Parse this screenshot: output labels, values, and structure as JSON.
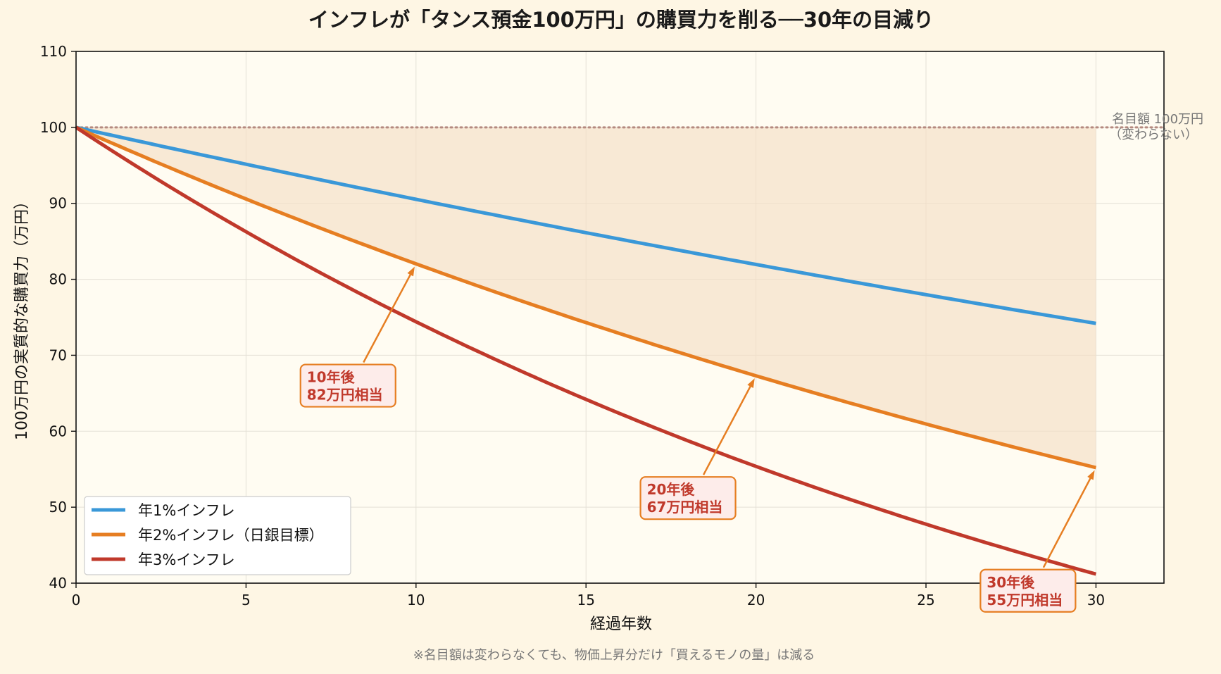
{
  "chart_data": {
    "type": "line",
    "title": "インフレが「タンス預金100万円」の購買力を削る──30年の目減り",
    "xlabel": "経過年数",
    "ylabel": "100万円の実質的な購買力（万円）",
    "xlim": [
      0,
      32
    ],
    "ylim": [
      40,
      110
    ],
    "x_ticks": [
      "0",
      "5",
      "10",
      "15",
      "20",
      "25",
      "30"
    ],
    "y_ticks": [
      "40",
      "50",
      "60",
      "70",
      "80",
      "90",
      "100",
      "110"
    ],
    "grid": true,
    "legend_position": "lower-left",
    "series": [
      {
        "name": "年1%インフレ",
        "color": "#3a98d8",
        "rate": 0.01,
        "x_range": [
          0,
          30
        ],
        "endpoints": [
          [
            0,
            100
          ],
          [
            10,
            90.5
          ],
          [
            20,
            82.0
          ],
          [
            30,
            74.2
          ]
        ]
      },
      {
        "name": "年2%インフレ（日銀目標）",
        "color": "#e67e22",
        "rate": 0.02,
        "x_range": [
          0,
          30
        ],
        "endpoints": [
          [
            0,
            100
          ],
          [
            10,
            82.0
          ],
          [
            20,
            67.3
          ],
          [
            30,
            55.2
          ]
        ]
      },
      {
        "name": "年3%インフレ",
        "color": "#c0392b",
        "rate": 0.03,
        "x_range": [
          0,
          30
        ],
        "endpoints": [
          [
            0,
            100
          ],
          [
            10,
            74.4
          ],
          [
            20,
            55.4
          ],
          [
            30,
            41.2
          ]
        ]
      }
    ],
    "nominal_line": {
      "value": 100,
      "label_line1": "名目額 100万円",
      "label_line2": "（変わらない）",
      "color": "#b58a80"
    },
    "shaded_area": {
      "between": [
        "nominal 100",
        "年2%インフレ（日銀目標）"
      ],
      "color": "#f5dfc5"
    },
    "annotations": [
      {
        "line1": "10年後",
        "line2": "82万円相当",
        "target_x": 10,
        "target_y": 82.0,
        "box_x": 8.0,
        "box_y": 66.0
      },
      {
        "line1": "20年後",
        "line2": "67万円相当",
        "target_x": 20,
        "target_y": 67.3,
        "box_x": 18.0,
        "box_y": 51.2
      },
      {
        "line1": "30年後",
        "line2": "55万円相当",
        "target_x": 30,
        "target_y": 55.2,
        "box_x": 28.0,
        "box_y": 39.0
      }
    ],
    "footnote": "※名目額は変わらなくても、物価上昇分だけ「買えるモノの量」は減る",
    "colors": {
      "background": "#fef6e4",
      "plot_background": "#fffcf2",
      "annotation_border": "#e67e22",
      "annotation_fill": "#fdecea"
    }
  }
}
